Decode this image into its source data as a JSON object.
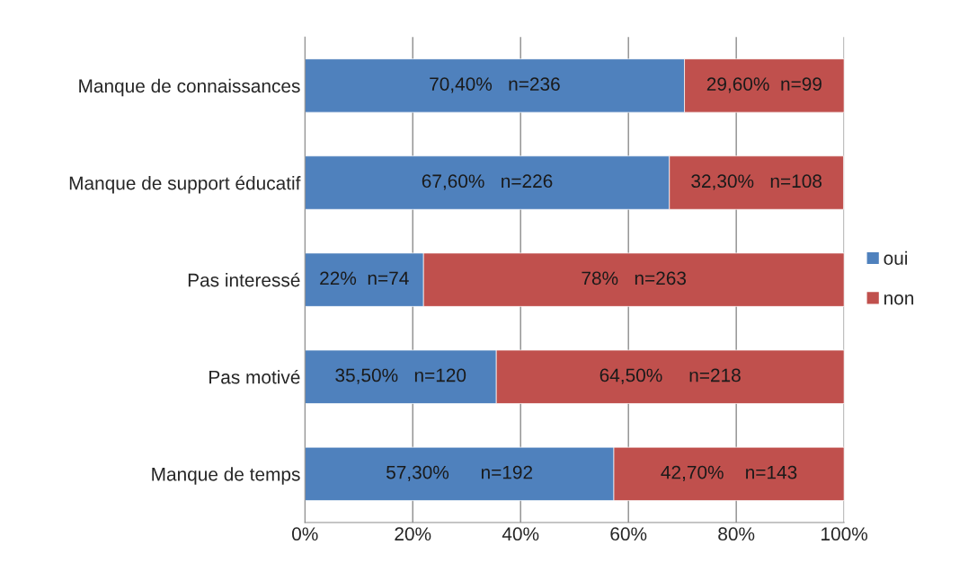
{
  "chart_data": {
    "type": "bar",
    "orientation": "horizontal",
    "stacked": true,
    "categories": [
      "Manque de connaissances",
      "Manque de support éducatif",
      "Pas interessé",
      "Pas motivé",
      "Manque de temps"
    ],
    "series": [
      {
        "name": "oui",
        "color": "#4f81bd",
        "values": [
          70.4,
          67.6,
          22,
          35.5,
          57.3
        ],
        "value_labels": [
          "70,40%   n=236",
          "67,60%   n=226",
          "22%  n=74",
          "35,50%   n=120",
          "57,30%      n=192"
        ]
      },
      {
        "name": "non",
        "color": "#c0504d",
        "values": [
          29.6,
          32.3,
          78,
          64.5,
          42.7
        ],
        "value_labels": [
          "29,60%  n=99",
          "32,30%   n=108",
          "78%   n=263",
          "64,50%     n=218",
          "42,70%    n=143"
        ]
      }
    ],
    "xlim": [
      0,
      100
    ],
    "xticks": [
      {
        "value": 0,
        "label": "0%"
      },
      {
        "value": 20,
        "label": "20%"
      },
      {
        "value": 40,
        "label": "40%"
      },
      {
        "value": 60,
        "label": "60%"
      },
      {
        "value": 80,
        "label": "80%"
      },
      {
        "value": 100,
        "label": "100%"
      }
    ],
    "grid": "x",
    "legend": "right"
  }
}
